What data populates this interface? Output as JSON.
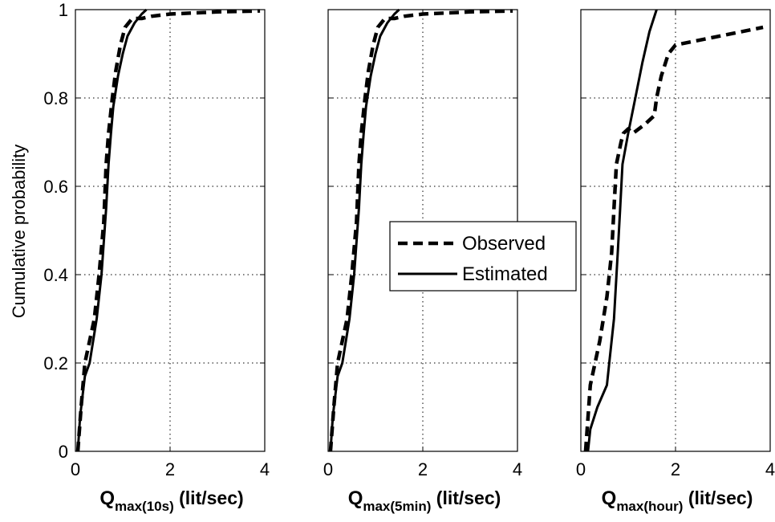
{
  "chart_data": {
    "type": "line",
    "ylabel": "Cumulative probability",
    "legend": {
      "placement": "center",
      "entries": [
        {
          "label": "Observed",
          "style": "dashed"
        },
        {
          "label": "Estimated",
          "style": "solid"
        }
      ]
    },
    "panels": [
      {
        "id": "10s",
        "xlabel_main": "Q",
        "xlabel_sub": "max(10s)",
        "xlabel_unit": "(lit/sec)",
        "xlim": [
          0,
          4
        ],
        "ylim": [
          0,
          1
        ],
        "xticks": [
          "0",
          "2",
          "4"
        ],
        "yticks": [
          "0",
          "0.2",
          "0.4",
          "0.6",
          "0.8",
          "1"
        ],
        "grid": true,
        "series": [
          {
            "name": "Observed",
            "x": [
              0.05,
              0.12,
              0.2,
              0.3,
              0.4,
              0.5,
              0.6,
              0.65,
              0.7,
              0.78,
              0.85,
              0.95,
              1.05,
              1.2,
              1.4,
              1.6,
              2.0,
              3.0,
              3.9
            ],
            "y": [
              0.0,
              0.1,
              0.2,
              0.25,
              0.3,
              0.4,
              0.52,
              0.65,
              0.72,
              0.8,
              0.86,
              0.92,
              0.96,
              0.98,
              0.98,
              0.985,
              0.99,
              0.995,
              0.997
            ]
          },
          {
            "name": "Estimated",
            "x": [
              0.05,
              0.1,
              0.2,
              0.3,
              0.45,
              0.55,
              0.65,
              0.7,
              0.75,
              0.8,
              0.9,
              1.0,
              1.1,
              1.25,
              1.4,
              1.5
            ],
            "y": [
              0.0,
              0.08,
              0.17,
              0.2,
              0.3,
              0.4,
              0.55,
              0.65,
              0.72,
              0.78,
              0.85,
              0.9,
              0.94,
              0.97,
              0.99,
              1.0
            ]
          }
        ]
      },
      {
        "id": "5min",
        "xlabel_main": "Q",
        "xlabel_sub": "max(5min)",
        "xlabel_unit": "(lit/sec)",
        "xlim": [
          0,
          4
        ],
        "ylim": [
          0,
          1
        ],
        "xticks": [
          "0",
          "2",
          "4"
        ],
        "yticks": [
          "0",
          "0.2",
          "0.4",
          "0.6",
          "0.8",
          "1"
        ],
        "grid": true,
        "series": [
          {
            "name": "Observed",
            "x": [
              0.05,
              0.12,
              0.2,
              0.3,
              0.4,
              0.5,
              0.6,
              0.65,
              0.7,
              0.78,
              0.85,
              0.95,
              1.05,
              1.2,
              1.4,
              1.6,
              2.0,
              3.0,
              3.9
            ],
            "y": [
              0.0,
              0.1,
              0.2,
              0.25,
              0.3,
              0.4,
              0.52,
              0.65,
              0.72,
              0.8,
              0.86,
              0.92,
              0.96,
              0.98,
              0.98,
              0.985,
              0.99,
              0.995,
              0.997
            ]
          },
          {
            "name": "Estimated",
            "x": [
              0.05,
              0.1,
              0.2,
              0.3,
              0.45,
              0.55,
              0.65,
              0.7,
              0.75,
              0.8,
              0.9,
              1.0,
              1.1,
              1.25,
              1.4,
              1.5
            ],
            "y": [
              0.0,
              0.08,
              0.17,
              0.2,
              0.3,
              0.4,
              0.55,
              0.65,
              0.72,
              0.78,
              0.85,
              0.9,
              0.94,
              0.97,
              0.99,
              1.0
            ]
          }
        ]
      },
      {
        "id": "hour",
        "xlabel_main": "Q",
        "xlabel_sub": "max(hour)",
        "xlabel_unit": "(lit/sec)",
        "xlim": [
          0,
          4
        ],
        "ylim": [
          0,
          1
        ],
        "xticks": [
          "0",
          "2",
          "4"
        ],
        "yticks": [
          "0",
          "0.2",
          "0.4",
          "0.6",
          "0.8",
          "1"
        ],
        "grid": true,
        "series": [
          {
            "name": "Observed",
            "x": [
              0.1,
              0.2,
              0.4,
              0.55,
              0.65,
              0.7,
              0.75,
              0.85,
              0.9,
              1.0,
              1.1,
              1.35,
              1.55,
              1.6,
              1.7,
              1.85,
              2.0,
              3.85
            ],
            "y": [
              0.0,
              0.15,
              0.25,
              0.35,
              0.45,
              0.55,
              0.65,
              0.7,
              0.72,
              0.73,
              0.72,
              0.74,
              0.76,
              0.8,
              0.85,
              0.9,
              0.92,
              0.96
            ]
          },
          {
            "name": "Estimated",
            "x": [
              0.15,
              0.2,
              0.35,
              0.55,
              0.6,
              0.7,
              0.78,
              0.83,
              0.88,
              1.0,
              1.15,
              1.3,
              1.45,
              1.6
            ],
            "y": [
              0.0,
              0.05,
              0.1,
              0.15,
              0.2,
              0.3,
              0.45,
              0.55,
              0.65,
              0.72,
              0.8,
              0.88,
              0.95,
              1.0
            ]
          }
        ]
      }
    ]
  }
}
